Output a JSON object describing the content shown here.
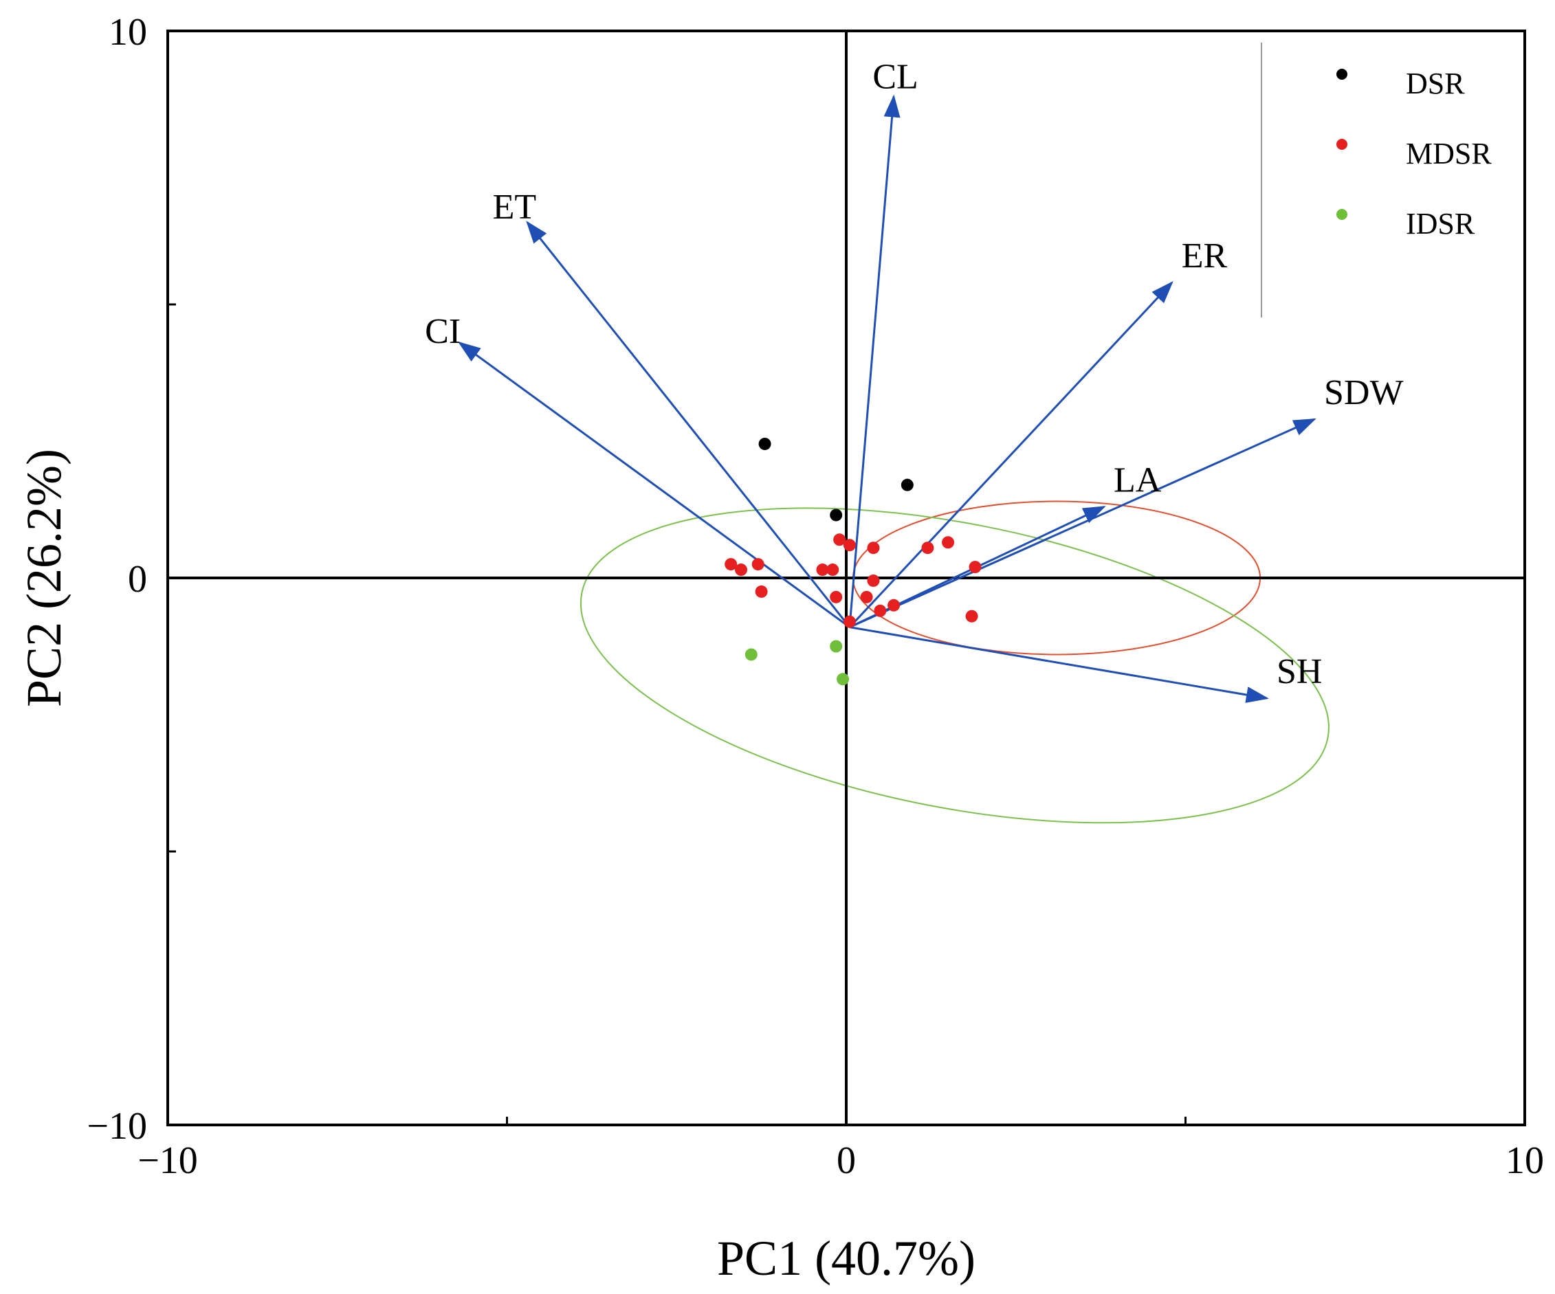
{
  "chart_data": {
    "type": "scatter",
    "title": "",
    "xlabel": "PC1 (40.7%)",
    "ylabel": "PC2 (26.2%)",
    "xlim": [
      -10,
      10
    ],
    "ylim": [
      -10,
      10
    ],
    "xticks": [
      -10,
      -5,
      0,
      5,
      10
    ],
    "yticks": [
      -10,
      -5,
      0,
      5,
      10
    ],
    "xtick_labels": [
      "−10",
      "",
      "0",
      "",
      "10"
    ],
    "ytick_labels": [
      "−10",
      "",
      "0",
      "",
      "10"
    ],
    "vector_origin": [
      0.05,
      -0.9
    ],
    "vectors": [
      {
        "name": "CL",
        "x": 0.7,
        "y": 8.8
      },
      {
        "name": "ET",
        "x": -4.7,
        "y": 6.5
      },
      {
        "name": "CI",
        "x": -5.7,
        "y": 4.3
      },
      {
        "name": "ER",
        "x": 4.8,
        "y": 5.4
      },
      {
        "name": "SDW",
        "x": 6.9,
        "y": 2.9
      },
      {
        "name": "LA",
        "x": 3.8,
        "y": 1.3
      },
      {
        "name": "SH",
        "x": 6.2,
        "y": -2.2
      }
    ],
    "vector_color": "#1f4fb5",
    "series": [
      {
        "name": "DSR",
        "color": "#000000",
        "points": [
          [
            -1.2,
            2.45
          ],
          [
            0.9,
            1.7
          ],
          [
            -0.15,
            1.15
          ]
        ]
      },
      {
        "name": "MDSR",
        "color": "#e62020",
        "points": [
          [
            -1.7,
            0.25
          ],
          [
            -1.55,
            0.15
          ],
          [
            -1.3,
            0.25
          ],
          [
            -1.25,
            -0.25
          ],
          [
            -0.35,
            0.15
          ],
          [
            -0.2,
            0.15
          ],
          [
            -0.1,
            0.7
          ],
          [
            0.05,
            0.6
          ],
          [
            0.4,
            0.55
          ],
          [
            1.2,
            0.55
          ],
          [
            1.5,
            0.65
          ],
          [
            1.9,
            0.2
          ],
          [
            0.4,
            -0.05
          ],
          [
            -0.15,
            -0.35
          ],
          [
            0.3,
            -0.35
          ],
          [
            0.5,
            -0.6
          ],
          [
            0.7,
            -0.5
          ],
          [
            0.05,
            -0.8
          ],
          [
            1.85,
            -0.7
          ]
        ]
      },
      {
        "name": "IDSR",
        "color": "#6fbf3a",
        "points": [
          [
            -1.4,
            -1.4
          ],
          [
            -0.15,
            -1.25
          ],
          [
            -0.05,
            -1.85
          ]
        ]
      }
    ],
    "ellipses": [
      {
        "series": "MDSR",
        "color": "#e05030",
        "cx": 3.1,
        "cy": 0.0,
        "rx": 3.0,
        "ry": 1.4,
        "rotation_deg": 0
      },
      {
        "series": "IDSR",
        "color": "#7cc04f",
        "cx": 1.6,
        "cy": -1.6,
        "rx": 5.6,
        "ry": 2.6,
        "rotation_deg": -11
      }
    ],
    "legend": {
      "position": "top-right",
      "entries": [
        "DSR",
        "MDSR",
        "IDSR"
      ]
    }
  }
}
